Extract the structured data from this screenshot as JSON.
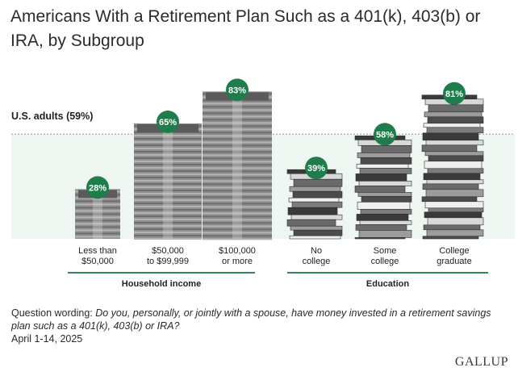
{
  "title": "Americans With a Retirement Plan Such as a 401(k), 403(b) or IRA, by Subgroup",
  "reference": {
    "label": "U.S. adults (59%)",
    "value": 59
  },
  "colors": {
    "badge": "#1e7d4a",
    "band": "#eef6f1",
    "group_line": "#2d8a58",
    "ref_line": "#9a9a9a"
  },
  "chart_data": {
    "type": "bar",
    "title": "Americans With a Retirement Plan Such as a 401(k), 403(b) or IRA, by Subgroup",
    "ylim": [
      0,
      100
    ],
    "unit": "%",
    "groups": [
      {
        "name": "Household income",
        "style": "money-stack",
        "categories": [
          "Less than $50,000",
          "$50,000 to $99,999",
          "$100,000 or more"
        ],
        "category_lines": [
          [
            "Less than",
            "$50,000"
          ],
          [
            "$50,000",
            "to $99,999"
          ],
          [
            "$100,000",
            "or more"
          ]
        ],
        "values": [
          28,
          65,
          83
        ],
        "labels": [
          "28%",
          "65%",
          "83%"
        ]
      },
      {
        "name": "Education",
        "style": "book-stack",
        "categories": [
          "No college",
          "Some college",
          "College graduate"
        ],
        "category_lines": [
          [
            "No",
            "college"
          ],
          [
            "Some",
            "college"
          ],
          [
            "College",
            "graduate"
          ]
        ],
        "values": [
          39,
          58,
          81
        ],
        "labels": [
          "39%",
          "58%",
          "81%"
        ]
      }
    ]
  },
  "footnote": {
    "prefix": "Question wording: ",
    "question": "Do you, personally, or jointly with a spouse, have money invested in a retirement savings plan such as a 401(k), 403(b) or IRA?",
    "dates": "April 1-14, 2025"
  },
  "logo": "GALLUP"
}
